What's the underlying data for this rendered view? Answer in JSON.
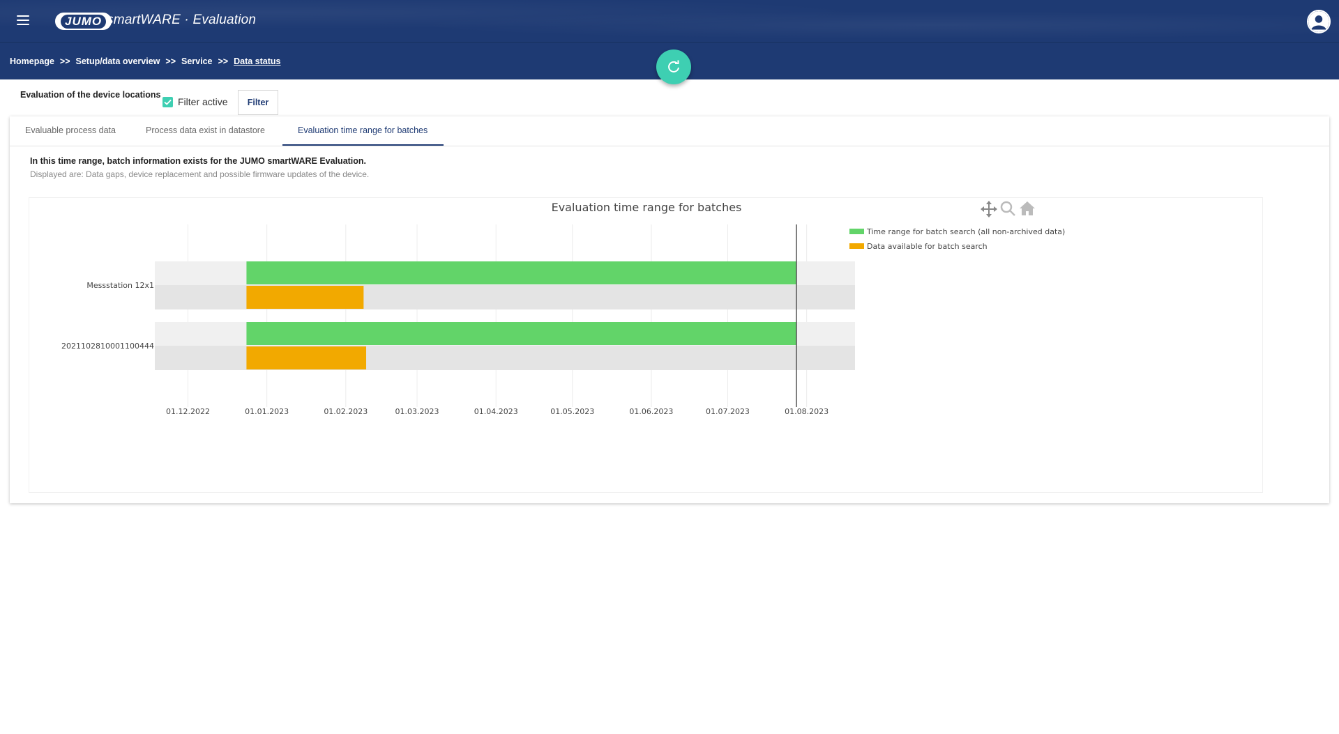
{
  "header": {
    "logo_text": "JUMO",
    "app_title": "smartWARE · Evaluation",
    "menu_icon": "hamburger-menu-icon",
    "user_icon": "user-avatar-icon"
  },
  "breadcrumb": {
    "items": [
      "Homepage",
      "Setup/data overview",
      "Service",
      "Data status"
    ],
    "separator": ">>"
  },
  "refresh_icon": "refresh-icon",
  "filter": {
    "section_label": "Evaluation of the device locations",
    "checkbox_label": "Filter active",
    "checked": true,
    "button_label": "Filter"
  },
  "tabs": [
    {
      "label": "Evaluable process data",
      "active": false
    },
    {
      "label": "Process data exist in datastore",
      "active": false
    },
    {
      "label": "Evaluation time range for batches",
      "active": true
    }
  ],
  "info": {
    "title": "In this time range, batch information exists for the JUMO smartWARE Evaluation.",
    "subtitle": "Displayed are: Data gaps, device replacement and possible firmware updates of the device."
  },
  "colors": {
    "brand": "#1e3a73",
    "accent": "#3ecfb2",
    "green": "#62d469",
    "orange": "#f2a900"
  },
  "chart_data": {
    "type": "bar",
    "orientation": "horizontal",
    "title": "Evaluation time range for batches",
    "x_axis": {
      "type": "date",
      "ticks": [
        "01.12.2022",
        "01.01.2023",
        "01.02.2023",
        "01.03.2023",
        "01.04.2023",
        "01.05.2023",
        "01.06.2023",
        "01.07.2023",
        "01.08.2023"
      ],
      "range": [
        "2022-11-18",
        "2023-08-20"
      ]
    },
    "categories": [
      "Messstation 12x1",
      "2021102810001100444"
    ],
    "series": [
      {
        "name": "Time range for batch search (all non-archived data)",
        "color": "#62d469",
        "values": [
          {
            "start": "2022-12-24",
            "end": "2023-07-28"
          },
          {
            "start": "2022-12-24",
            "end": "2023-07-28"
          }
        ]
      },
      {
        "name": "Data available for batch search",
        "color": "#f2a900",
        "values": [
          {
            "start": "2022-12-24",
            "end": "2023-02-08"
          },
          {
            "start": "2022-12-24",
            "end": "2023-02-09"
          }
        ]
      }
    ],
    "marker_line": "2023-07-28",
    "legend_position": "top-right",
    "modebar_icons": [
      "pan-icon",
      "zoom-icon",
      "home-icon"
    ]
  }
}
